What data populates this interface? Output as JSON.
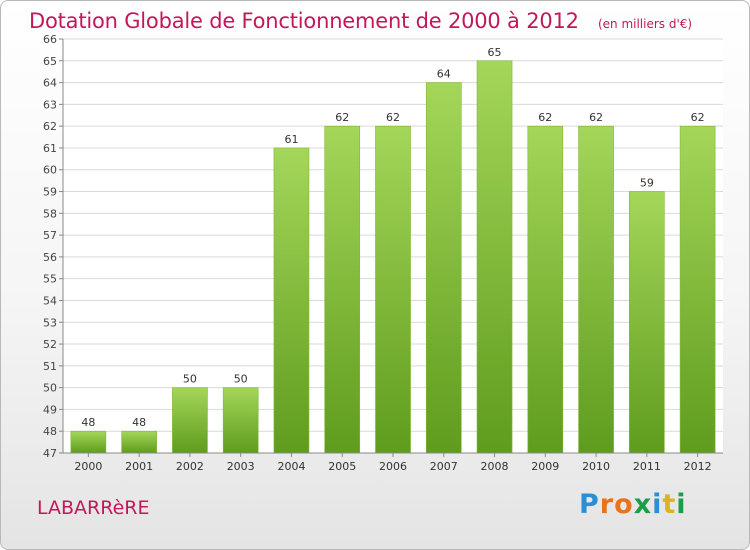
{
  "header": {
    "title": "Dotation Globale de Fonctionnement de 2000 à 2012",
    "unit_note": "(en milliers d'€)"
  },
  "commune": "LABARRèRE",
  "logo": {
    "text": "Proxiti",
    "letters": [
      {
        "ch": "P",
        "color": "#2a8fd6"
      },
      {
        "ch": "r",
        "color": "#e8731c"
      },
      {
        "ch": "o",
        "color": "#e8731c"
      },
      {
        "ch": "x",
        "color": "#1c9d48"
      },
      {
        "ch": "i",
        "color": "#2a8fd6"
      },
      {
        "ch": "t",
        "color": "#d9b51c"
      },
      {
        "ch": "i",
        "color": "#1c9d48"
      }
    ]
  },
  "colors": {
    "bar_top": "#a4d65a",
    "bar_bottom": "#5f9c1d",
    "title": "#c2185b",
    "grid": "#d9d9d9"
  },
  "chart_data": {
    "type": "bar",
    "title": "Dotation Globale de Fonctionnement de 2000 à 2012",
    "subtitle": "(en milliers d'€)",
    "categories": [
      "2000",
      "2001",
      "2002",
      "2003",
      "2004",
      "2005",
      "2006",
      "2007",
      "2008",
      "2009",
      "2010",
      "2011",
      "2012"
    ],
    "values": [
      48,
      48,
      50,
      50,
      61,
      62,
      62,
      64,
      65,
      62,
      62,
      59,
      62
    ],
    "ylim": [
      47,
      66
    ],
    "yticks": [
      47,
      48,
      49,
      50,
      51,
      52,
      53,
      54,
      55,
      56,
      57,
      58,
      59,
      60,
      61,
      62,
      63,
      64,
      65,
      66
    ],
    "grid": true,
    "data_labels": true
  }
}
